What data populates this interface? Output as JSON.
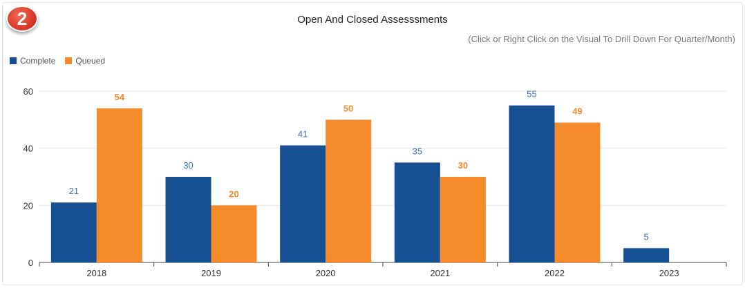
{
  "badge": {
    "label": "2"
  },
  "header": {
    "title": "Open And Closed Assesssments",
    "subtitle": "(Click or Right Click on the Visual To Drill Down For Quarter/Month)"
  },
  "colors": {
    "complete": "#174f93",
    "queued": "#f68b2b",
    "grid": "#e6e6e6",
    "axis": "#444444"
  },
  "chart_data": {
    "type": "bar",
    "categories": [
      "2018",
      "2019",
      "2020",
      "2021",
      "2022",
      "2023"
    ],
    "series": [
      {
        "name": "Complete",
        "values": [
          21,
          30,
          41,
          35,
          55,
          5
        ]
      },
      {
        "name": "Queued",
        "values": [
          54,
          20,
          50,
          30,
          49,
          null
        ]
      }
    ],
    "y_ticks": [
      "0",
      "20",
      "40",
      "60"
    ],
    "ylim": [
      0,
      60
    ],
    "grid": true,
    "legend": "top-left"
  }
}
